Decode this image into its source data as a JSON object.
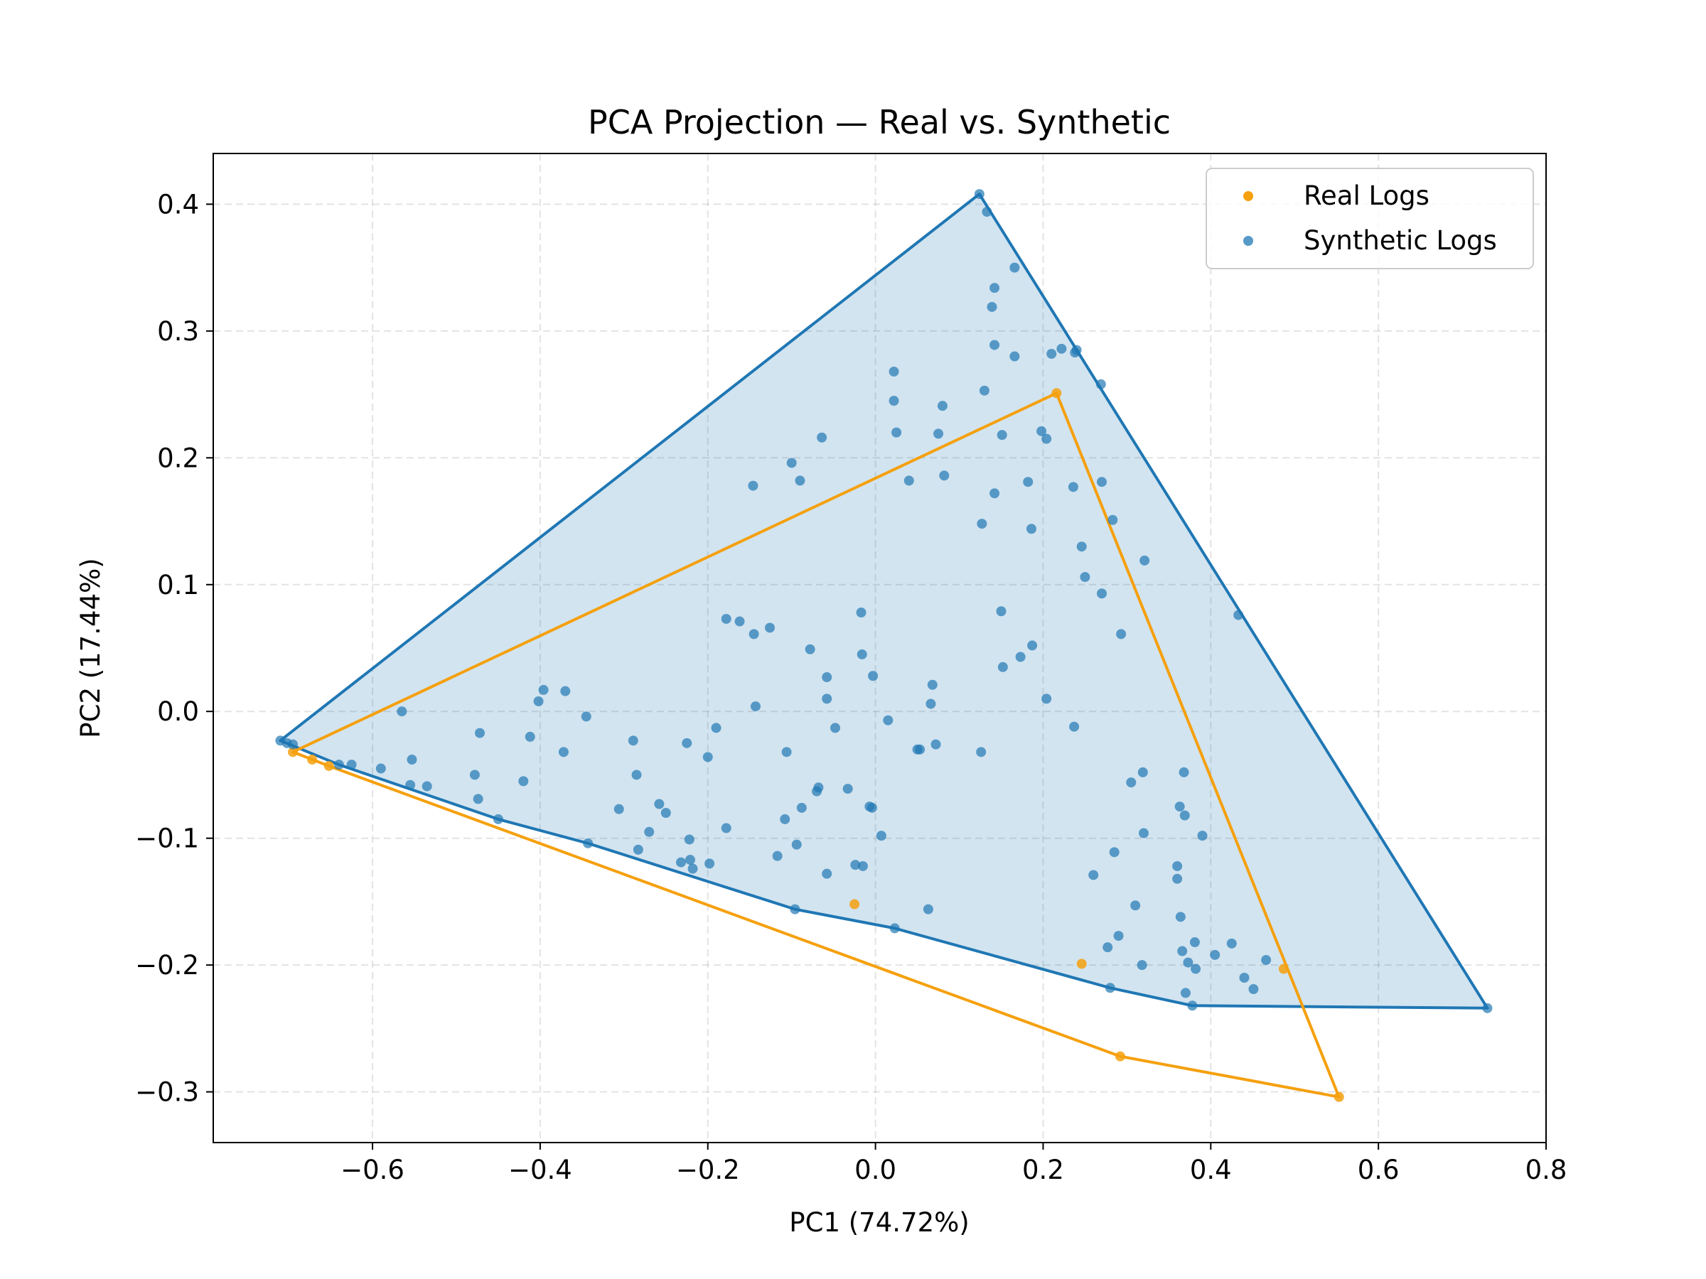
{
  "chart_data": {
    "type": "scatter",
    "title": "PCA Projection — Real vs. Synthetic",
    "xlabel": "PC1 (74.72%)",
    "ylabel": "PC2 (17.44%)",
    "xlim": [
      -0.79,
      0.8
    ],
    "ylim": [
      -0.34,
      0.44
    ],
    "xticks": [
      -0.6,
      -0.4,
      -0.2,
      0.0,
      0.2,
      0.4,
      0.6,
      0.8
    ],
    "xtick_labels": [
      "−0.6",
      "−0.4",
      "−0.2",
      "0.0",
      "0.2",
      "0.4",
      "0.6",
      "0.8"
    ],
    "yticks": [
      -0.3,
      -0.2,
      -0.1,
      0.0,
      0.1,
      0.2,
      0.3,
      0.4
    ],
    "ytick_labels": [
      "−0.3",
      "−0.2",
      "−0.1",
      "0.0",
      "0.1",
      "0.2",
      "0.3",
      "0.4"
    ],
    "grid": true,
    "legend_position": "top-right",
    "series": [
      {
        "name": "Real Logs",
        "color": "#f5a00e",
        "points": [
          [
            -0.695,
            -0.032
          ],
          [
            -0.672,
            -0.038
          ],
          [
            -0.652,
            -0.043
          ],
          [
            -0.025,
            -0.152
          ],
          [
            0.246,
            -0.199
          ],
          [
            0.487,
            -0.203
          ],
          [
            0.292,
            -0.272
          ],
          [
            0.553,
            -0.304
          ],
          [
            0.216,
            0.251
          ]
        ],
        "hull": [
          [
            -0.695,
            -0.032
          ],
          [
            0.216,
            0.251
          ],
          [
            0.553,
            -0.304
          ],
          [
            0.292,
            -0.272
          ],
          [
            -0.652,
            -0.043
          ]
        ]
      },
      {
        "name": "Synthetic Logs",
        "color": "#1f77b4",
        "points": [
          [
            -0.71,
            -0.023
          ],
          [
            -0.702,
            -0.025
          ],
          [
            -0.695,
            -0.026
          ],
          [
            -0.64,
            -0.042
          ],
          [
            -0.625,
            -0.042
          ],
          [
            -0.59,
            -0.045
          ],
          [
            -0.565,
            0.0
          ],
          [
            -0.553,
            -0.038
          ],
          [
            -0.555,
            -0.058
          ],
          [
            -0.535,
            -0.059
          ],
          [
            -0.478,
            -0.05
          ],
          [
            -0.474,
            -0.069
          ],
          [
            -0.472,
            -0.017
          ],
          [
            -0.45,
            -0.085
          ],
          [
            -0.42,
            -0.055
          ],
          [
            -0.412,
            -0.02
          ],
          [
            -0.402,
            0.008
          ],
          [
            -0.396,
            0.017
          ],
          [
            -0.372,
            -0.032
          ],
          [
            -0.37,
            0.016
          ],
          [
            -0.345,
            -0.004
          ],
          [
            -0.343,
            -0.104
          ],
          [
            -0.306,
            -0.077
          ],
          [
            -0.289,
            -0.023
          ],
          [
            -0.285,
            -0.05
          ],
          [
            -0.283,
            -0.109
          ],
          [
            -0.27,
            -0.095
          ],
          [
            -0.258,
            -0.073
          ],
          [
            -0.25,
            -0.08
          ],
          [
            -0.232,
            -0.119
          ],
          [
            -0.225,
            -0.025
          ],
          [
            -0.222,
            -0.101
          ],
          [
            -0.221,
            -0.117
          ],
          [
            -0.218,
            -0.124
          ],
          [
            -0.2,
            -0.036
          ],
          [
            -0.198,
            -0.12
          ],
          [
            -0.19,
            -0.013
          ],
          [
            -0.178,
            -0.092
          ],
          [
            -0.178,
            0.073
          ],
          [
            -0.162,
            0.071
          ],
          [
            -0.146,
            0.178
          ],
          [
            -0.145,
            0.061
          ],
          [
            -0.143,
            0.004
          ],
          [
            -0.126,
            0.066
          ],
          [
            -0.117,
            -0.114
          ],
          [
            -0.108,
            -0.085
          ],
          [
            -0.106,
            -0.032
          ],
          [
            -0.1,
            0.196
          ],
          [
            -0.096,
            -0.156
          ],
          [
            -0.094,
            -0.105
          ],
          [
            -0.09,
            0.182
          ],
          [
            -0.088,
            -0.076
          ],
          [
            -0.078,
            0.049
          ],
          [
            -0.07,
            -0.063
          ],
          [
            -0.068,
            -0.06
          ],
          [
            -0.064,
            0.216
          ],
          [
            -0.058,
            -0.128
          ],
          [
            -0.058,
            0.027
          ],
          [
            -0.058,
            0.01
          ],
          [
            -0.048,
            -0.013
          ],
          [
            -0.033,
            -0.061
          ],
          [
            -0.024,
            -0.121
          ],
          [
            -0.017,
            0.078
          ],
          [
            -0.016,
            0.045
          ],
          [
            -0.015,
            -0.122
          ],
          [
            -0.007,
            -0.075
          ],
          [
            -0.004,
            -0.076
          ],
          [
            -0.003,
            0.028
          ],
          [
            0.007,
            -0.098
          ],
          [
            0.015,
            -0.007
          ],
          [
            0.022,
            0.268
          ],
          [
            0.022,
            0.245
          ],
          [
            0.025,
            0.22
          ],
          [
            0.023,
            -0.171
          ],
          [
            0.04,
            0.182
          ],
          [
            0.05,
            -0.03
          ],
          [
            0.053,
            -0.03
          ],
          [
            0.063,
            -0.156
          ],
          [
            0.066,
            0.006
          ],
          [
            0.068,
            0.021
          ],
          [
            0.072,
            -0.026
          ],
          [
            0.075,
            0.219
          ],
          [
            0.08,
            0.241
          ],
          [
            0.082,
            0.186
          ],
          [
            0.124,
            0.408
          ],
          [
            0.126,
            -0.032
          ],
          [
            0.127,
            0.148
          ],
          [
            0.13,
            0.253
          ],
          [
            0.133,
            0.394
          ],
          [
            0.139,
            0.319
          ],
          [
            0.142,
            0.334
          ],
          [
            0.142,
            0.289
          ],
          [
            0.142,
            0.172
          ],
          [
            0.15,
            0.079
          ],
          [
            0.151,
            0.218
          ],
          [
            0.152,
            0.035
          ],
          [
            0.166,
            0.28
          ],
          [
            0.166,
            0.35
          ],
          [
            0.173,
            0.043
          ],
          [
            0.182,
            0.181
          ],
          [
            0.186,
            0.144
          ],
          [
            0.187,
            0.052
          ],
          [
            0.198,
            0.221
          ],
          [
            0.204,
            0.01
          ],
          [
            0.204,
            0.215
          ],
          [
            0.21,
            0.282
          ],
          [
            0.222,
            0.286
          ],
          [
            0.236,
            0.177
          ],
          [
            0.237,
            -0.012
          ],
          [
            0.238,
            0.283
          ],
          [
            0.24,
            0.285
          ],
          [
            0.246,
            0.13
          ],
          [
            0.25,
            0.106
          ],
          [
            0.26,
            -0.129
          ],
          [
            0.269,
            0.258
          ],
          [
            0.27,
            0.181
          ],
          [
            0.27,
            0.093
          ],
          [
            0.277,
            -0.186
          ],
          [
            0.28,
            -0.218
          ],
          [
            0.283,
            0.151
          ],
          [
            0.285,
            -0.111
          ],
          [
            0.29,
            -0.177
          ],
          [
            0.293,
            0.061
          ],
          [
            0.305,
            -0.056
          ],
          [
            0.31,
            -0.153
          ],
          [
            0.318,
            -0.2
          ],
          [
            0.319,
            -0.048
          ],
          [
            0.32,
            -0.096
          ],
          [
            0.321,
            0.119
          ],
          [
            0.36,
            -0.122
          ],
          [
            0.36,
            -0.132
          ],
          [
            0.363,
            -0.075
          ],
          [
            0.364,
            -0.162
          ],
          [
            0.366,
            -0.189
          ],
          [
            0.368,
            -0.048
          ],
          [
            0.369,
            -0.082
          ],
          [
            0.37,
            -0.222
          ],
          [
            0.373,
            -0.198
          ],
          [
            0.378,
            -0.232
          ],
          [
            0.381,
            -0.182
          ],
          [
            0.382,
            -0.203
          ],
          [
            0.39,
            -0.098
          ],
          [
            0.405,
            -0.192
          ],
          [
            0.425,
            -0.183
          ],
          [
            0.433,
            0.076
          ],
          [
            0.44,
            -0.21
          ],
          [
            0.451,
            -0.219
          ],
          [
            0.466,
            -0.196
          ],
          [
            0.73,
            -0.234
          ]
        ],
        "hull": [
          [
            -0.71,
            -0.023
          ],
          [
            0.124,
            0.408
          ],
          [
            0.73,
            -0.234
          ],
          [
            0.378,
            -0.232
          ],
          [
            0.28,
            -0.218
          ],
          [
            0.023,
            -0.171
          ],
          [
            -0.096,
            -0.156
          ],
          [
            -0.343,
            -0.104
          ],
          [
            -0.45,
            -0.085
          ],
          [
            -0.64,
            -0.042
          ]
        ]
      }
    ]
  }
}
